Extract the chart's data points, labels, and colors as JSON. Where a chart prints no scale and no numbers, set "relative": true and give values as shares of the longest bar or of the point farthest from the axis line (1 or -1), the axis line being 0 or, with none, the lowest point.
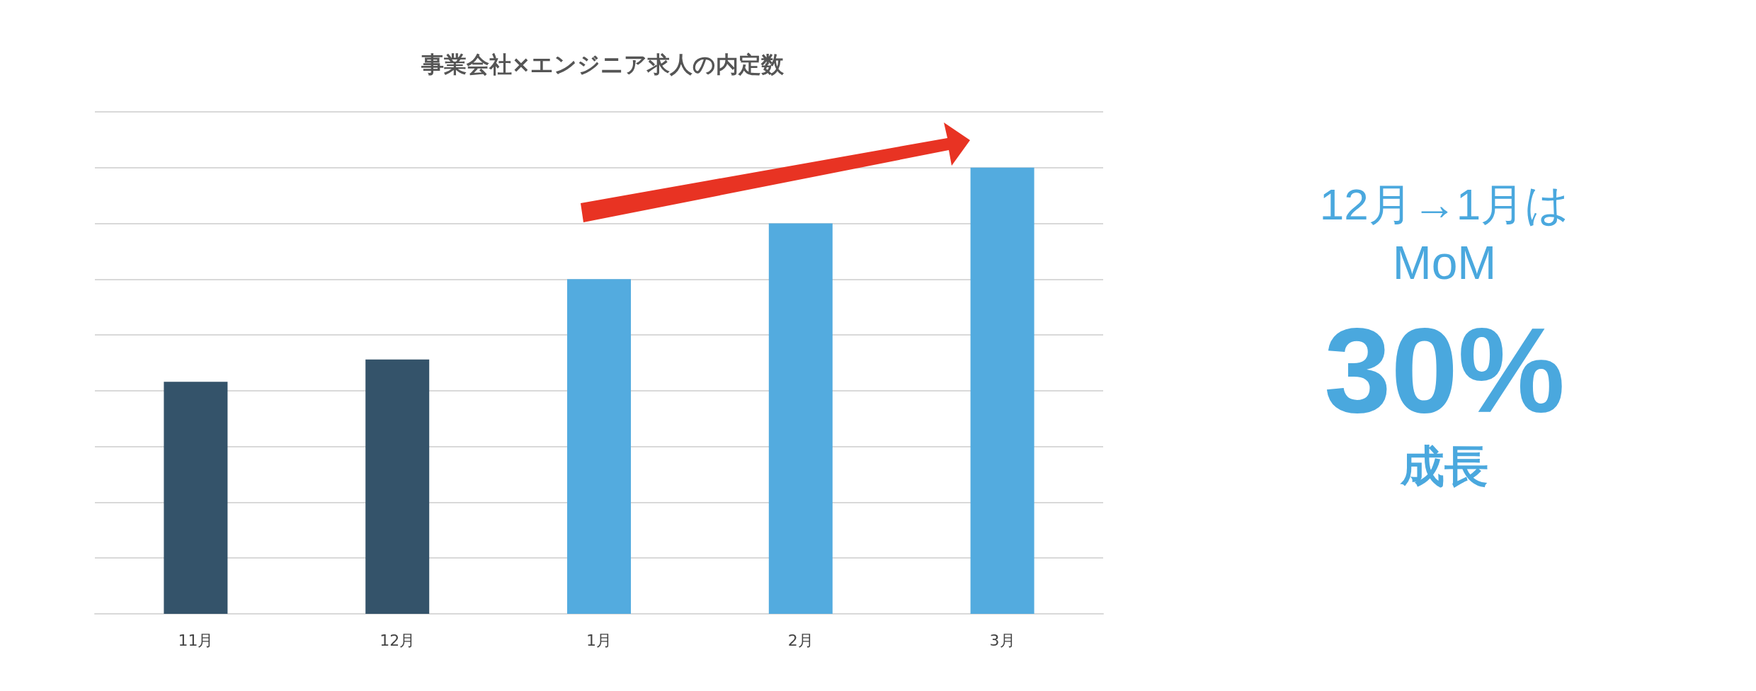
{
  "chart_data": {
    "type": "bar",
    "title": "事業会社×エンジニア求人の内定数",
    "categories": [
      "11月",
      "12月",
      "1月",
      "2月",
      "3月"
    ],
    "values": [
      0.52,
      0.57,
      0.75,
      0.875,
      1
    ],
    "colors": [
      "#34536a",
      "#34536a",
      "#53abdf",
      "#53abdf",
      "#53abdf"
    ],
    "relative": true,
    "grid": "y",
    "annotations": [
      "12月→1月は",
      "MoM",
      "30%",
      "成長"
    ]
  }
}
